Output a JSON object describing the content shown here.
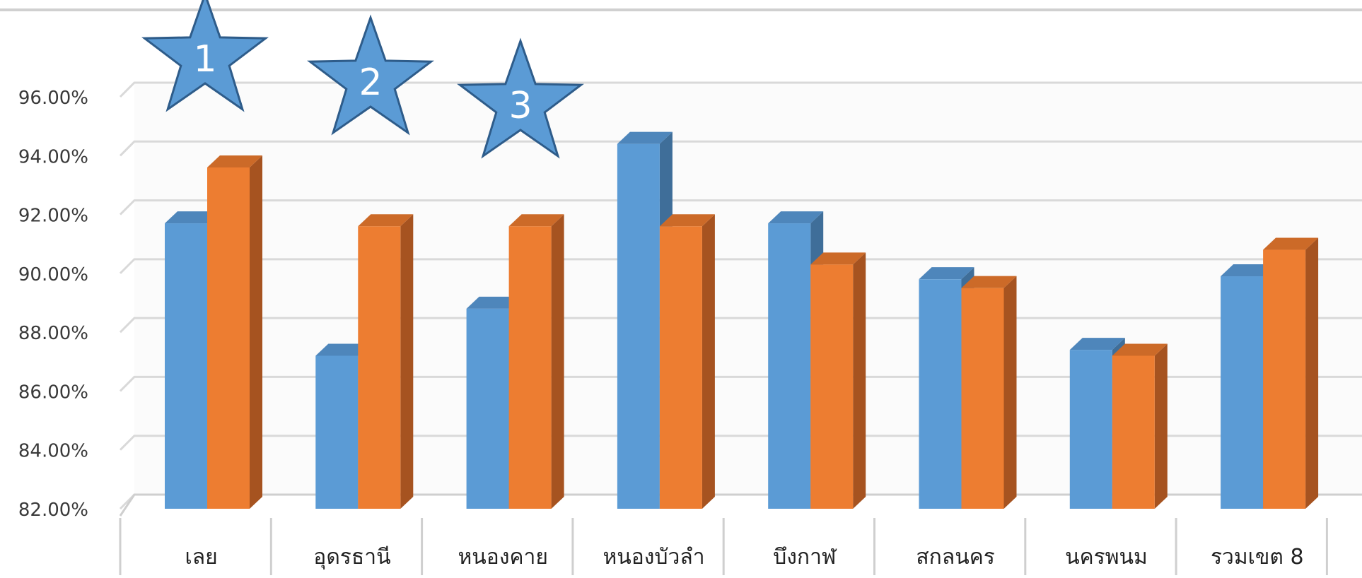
{
  "chart_data": {
    "type": "bar",
    "three_d": true,
    "categories": [
      "เลย",
      "อุดรธานี",
      "หนองคาย",
      "หนองบัวลำ",
      "บึงกาฬ",
      "สกลนคร",
      "นครพนม",
      "รวมเขต 8"
    ],
    "series": [
      {
        "values": [
          91.7,
          87.2,
          88.8,
          94.4,
          91.7,
          89.8,
          87.4,
          89.9
        ]
      },
      {
        "values": [
          93.6,
          91.6,
          91.6,
          91.6,
          90.3,
          89.5,
          87.2,
          90.8
        ]
      }
    ],
    "ylim": [
      82,
      97
    ],
    "yticks": [
      82,
      84,
      86,
      88,
      90,
      92,
      94,
      96
    ],
    "ytick_labels": [
      "82.00%",
      "84.00%",
      "86.00%",
      "88.00%",
      "90.00%",
      "92.00%",
      "94.00%",
      "96.00%"
    ],
    "grid": true,
    "colors": {
      "series_0_front": "#5b9bd5",
      "series_0_side": "#3f6e99",
      "series_0_top": "#4e86bb",
      "series_1_front": "#ed7d31",
      "series_1_side": "#a65320",
      "series_1_top": "#cc6a28",
      "gridline": "#d9d9d9",
      "axis_text": "#3a3a3a",
      "star_fill": "#5b9bd5",
      "star_stroke": "#2e5c8a"
    },
    "annotations": [
      {
        "type": "star",
        "label": "1",
        "category_index": 0
      },
      {
        "type": "star",
        "label": "2",
        "category_index": 1
      },
      {
        "type": "star",
        "label": "3",
        "category_index": 2
      }
    ]
  }
}
